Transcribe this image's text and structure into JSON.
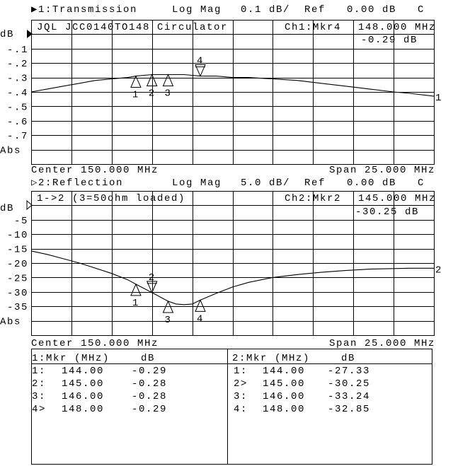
{
  "colors": {
    "background": "#ffffff",
    "foreground": "#000000"
  },
  "channels": [
    {
      "title": "▶1:Transmission",
      "format": "Log Mag",
      "scale": "0.1 dB/",
      "ref_label": "Ref",
      "ref_value": "0.00 dB",
      "coupling": "C",
      "annotation": "JQL JCC0140TO148 Circulator",
      "active_marker_label": "Ch1:Mkr4",
      "active_marker_freq": "148.000 MHz",
      "active_marker_value": "-0.29 dB",
      "unit_label": "dB",
      "ref_marker_icon": "filled-triangle-right",
      "y_labels": [
        "-.1",
        "-.2",
        "-.3",
        "-.4",
        "-.5",
        "-.6",
        "-.7"
      ],
      "bottom_label": "Abs",
      "trace_label": "1",
      "center": "Center 150.000 MHz",
      "span": "Span 25.000 MHz",
      "scale_per_div": 0.1,
      "ref_db": 0,
      "trace": {
        "freq_mhz": [
          137.5,
          138.5,
          139.5,
          140.5,
          141.5,
          142.5,
          143.5,
          144,
          145,
          146,
          147,
          148,
          149,
          150,
          151,
          152.5,
          154,
          155.5,
          157,
          158.5,
          160,
          161,
          162.5
        ],
        "db": [
          -0.4,
          -0.38,
          -0.36,
          -0.34,
          -0.32,
          -0.31,
          -0.3,
          -0.29,
          -0.28,
          -0.28,
          -0.28,
          -0.29,
          -0.29,
          -0.3,
          -0.3,
          -0.31,
          -0.32,
          -0.34,
          -0.36,
          -0.38,
          -0.4,
          -0.41,
          -0.43
        ]
      },
      "markers": [
        {
          "label": "1",
          "freq_mhz": 144.0,
          "db": -0.29,
          "active": false
        },
        {
          "label": "2",
          "freq_mhz": 145.0,
          "db": -0.28,
          "active": false
        },
        {
          "label": "3",
          "freq_mhz": 146.0,
          "db": -0.28,
          "active": false
        },
        {
          "label": "4",
          "freq_mhz": 148.0,
          "db": -0.29,
          "active": true
        }
      ]
    },
    {
      "title": "▷2:Reflection",
      "format": "Log Mag",
      "scale": "5.0 dB/",
      "ref_label": "Ref",
      "ref_value": "0.00 dB",
      "coupling": "C",
      "annotation": "1->2 (3=50ohm loaded)",
      "active_marker_label": "Ch2:Mkr2",
      "active_marker_freq": "145.000 MHz",
      "active_marker_value": "-30.25 dB",
      "unit_label": "dB",
      "ref_marker_icon": "outline-triangle-right",
      "y_labels": [
        "-5",
        "-10",
        "-15",
        "-20",
        "-25",
        "-30",
        "-35"
      ],
      "bottom_label": "Abs",
      "trace_label": "2",
      "center": "Center 150.000 MHz",
      "span": "Span 25.000 MHz",
      "scale_per_div": 5,
      "ref_db": 0,
      "trace": {
        "freq_mhz": [
          137.5,
          138.5,
          139.5,
          140.5,
          141.5,
          142.5,
          143.5,
          144,
          145,
          146,
          146.5,
          147,
          147.5,
          148,
          149,
          150,
          151,
          152.5,
          154,
          155.5,
          157,
          158.5,
          160,
          161,
          162.5
        ],
        "db": [
          -15.8,
          -17.0,
          -18.5,
          -20.0,
          -21.8,
          -23.6,
          -25.8,
          -27.33,
          -30.25,
          -33.24,
          -34.2,
          -34.4,
          -34.2,
          -32.85,
          -30.5,
          -28.3,
          -26.7,
          -25.0,
          -24.0,
          -23.2,
          -22.6,
          -22.1,
          -21.9,
          -21.8,
          -21.8
        ]
      },
      "markers": [
        {
          "label": "1",
          "freq_mhz": 144.0,
          "db": -27.33,
          "active": false
        },
        {
          "label": "2",
          "freq_mhz": 145.0,
          "db": -30.25,
          "active": true
        },
        {
          "label": "3",
          "freq_mhz": 146.0,
          "db": -33.24,
          "active": false
        },
        {
          "label": "4",
          "freq_mhz": 148.0,
          "db": -32.85,
          "active": false
        }
      ]
    }
  ],
  "start_mhz": 137.5,
  "stop_mhz": 162.5,
  "marker_tables": [
    {
      "header_mkr": "1:Mkr (MHz)",
      "header_db": "dB",
      "rows": [
        {
          "id": "1:",
          "freq": "144.00",
          "db": "-0.29"
        },
        {
          "id": "2:",
          "freq": "145.00",
          "db": "-0.28"
        },
        {
          "id": "3:",
          "freq": "146.00",
          "db": "-0.28"
        },
        {
          "id": "4>",
          "freq": "148.00",
          "db": "-0.29"
        }
      ]
    },
    {
      "header_mkr": "2:Mkr (MHz)",
      "header_db": "dB",
      "rows": [
        {
          "id": "1:",
          "freq": "144.00",
          "db": "-27.33"
        },
        {
          "id": "2>",
          "freq": "145.00",
          "db": "-30.25"
        },
        {
          "id": "3:",
          "freq": "146.00",
          "db": "-33.24"
        },
        {
          "id": "4:",
          "freq": "148.00",
          "db": "-32.85"
        }
      ]
    }
  ]
}
